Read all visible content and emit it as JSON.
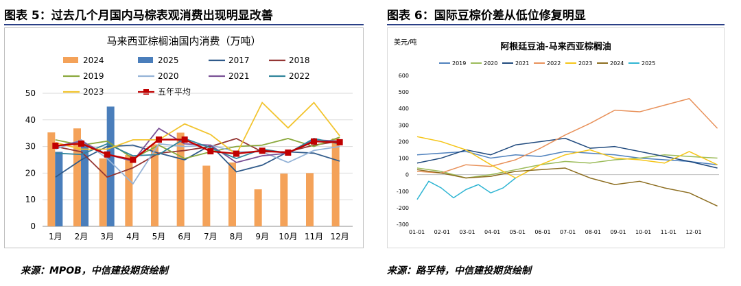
{
  "figures": [
    {
      "title": "图表 5：过去几个月国内马棕表观消费出现明显改善",
      "source": "来源：MPOB，中信建投期货绘制"
    },
    {
      "title": "图表 6：国际豆棕价差从低位修复明显",
      "source": "来源：路孚特，中信建投期货绘制"
    }
  ],
  "chart_data": [
    {
      "type": "bar",
      "title": "马来西亚棕榈油国内消费（万吨）",
      "categories": [
        "1月",
        "2月",
        "3月",
        "4月",
        "5月",
        "6月",
        "7月",
        "8月",
        "9月",
        "10月",
        "11月",
        "12月"
      ],
      "ylim": [
        0,
        50
      ],
      "yticks": [
        "0",
        "10",
        "20",
        "30",
        "40",
        "50"
      ],
      "grid": true,
      "legend": "top",
      "series": [
        {
          "name": "2024",
          "kind": "bar",
          "color": "#f4a259",
          "values": [
            35.3,
            36.8,
            25.5,
            26.8,
            30.8,
            35.2,
            22.8,
            24.0,
            13.9,
            19.8,
            20.0,
            33.0
          ]
        },
        {
          "name": "2025",
          "kind": "bar",
          "color": "#4a7ebb",
          "values": [
            28.0,
            31.0,
            45.0,
            null,
            null,
            null,
            null,
            null,
            null,
            null,
            null,
            null
          ]
        },
        {
          "name": "2017",
          "kind": "line",
          "color": "#2f5a8a",
          "values": [
            18.5,
            25.0,
            30.0,
            30.5,
            27.5,
            25.0,
            30.5,
            20.5,
            23.0,
            28.0,
            27.5,
            24.5
          ]
        },
        {
          "name": "2018",
          "kind": "line",
          "color": "#943634",
          "values": [
            30.0,
            28.0,
            18.5,
            22.0,
            27.5,
            28.5,
            30.0,
            33.0,
            28.0,
            28.0,
            30.5,
            32.0
          ]
        },
        {
          "name": "2019",
          "kind": "line",
          "color": "#8aa83c",
          "values": [
            32.5,
            30.5,
            32.0,
            25.5,
            30.5,
            25.5,
            28.0,
            30.0,
            30.5,
            33.0,
            30.0,
            33.5
          ]
        },
        {
          "name": "2020",
          "kind": "line",
          "color": "#95b3d7",
          "values": [
            29.0,
            32.5,
            25.5,
            16.0,
            31.0,
            30.0,
            30.5,
            28.0,
            28.0,
            24.0,
            28.5,
            30.0
          ]
        },
        {
          "name": "2021",
          "kind": "line",
          "color": "#7a5196",
          "values": [
            30.0,
            32.0,
            27.0,
            24.5,
            36.8,
            31.0,
            30.5,
            24.0,
            26.5,
            27.5,
            32.5,
            32.0
          ]
        },
        {
          "name": "2022",
          "kind": "line",
          "color": "#31859c",
          "values": [
            27.5,
            27.0,
            31.0,
            26.5,
            27.0,
            33.0,
            29.5,
            25.5,
            29.0,
            27.5,
            33.0,
            31.0
          ]
        },
        {
          "name": "2023",
          "kind": "line",
          "color": "#f2c42e",
          "values": [
            31.5,
            29.0,
            29.0,
            32.5,
            32.5,
            38.5,
            34.5,
            27.0,
            46.5,
            37.0,
            46.5,
            34.0
          ]
        },
        {
          "name": "五年平均",
          "kind": "avg",
          "color": "#c00000",
          "values": [
            30.3,
            31.1,
            27.0,
            25.0,
            32.6,
            32.6,
            28.2,
            27.3,
            28.4,
            27.7,
            31.9,
            31.6
          ]
        }
      ]
    },
    {
      "type": "line",
      "title": "阿根廷豆油-马来西亚棕榈油",
      "ylabel": "美元/吨",
      "x_ticks": [
        "01-01",
        "02-01",
        "03-01",
        "04-01",
        "05-01",
        "06-01",
        "07-01",
        "08-01",
        "09-01",
        "10-01",
        "11-01",
        "12-01"
      ],
      "ylim": [
        -300,
        600
      ],
      "yticks": [
        "-300",
        "-200",
        "-100",
        "0",
        "100",
        "200",
        "300",
        "400",
        "500",
        "600"
      ],
      "grid": false,
      "legend": "top",
      "series": [
        {
          "name": "2019",
          "color": "#4f81bd",
          "x": [
            1,
            30,
            60,
            90,
            120,
            150,
            180,
            210,
            240,
            270,
            300,
            330,
            364
          ],
          "y": [
            120,
            130,
            140,
            100,
            120,
            110,
            140,
            130,
            120,
            100,
            90,
            80,
            60
          ]
        },
        {
          "name": "2020",
          "color": "#9bbb59",
          "x": [
            1,
            30,
            60,
            90,
            120,
            150,
            180,
            210,
            240,
            270,
            300,
            330,
            364
          ],
          "y": [
            40,
            20,
            -20,
            0,
            30,
            60,
            80,
            70,
            90,
            100,
            120,
            110,
            100
          ]
        },
        {
          "name": "2021",
          "color": "#1f497d",
          "x": [
            1,
            30,
            60,
            90,
            120,
            150,
            180,
            210,
            240,
            270,
            300,
            330,
            364
          ],
          "y": [
            70,
            100,
            150,
            120,
            180,
            200,
            220,
            160,
            170,
            140,
            110,
            80,
            40
          ]
        },
        {
          "name": "2022",
          "color": "#e8915a",
          "x": [
            1,
            30,
            60,
            90,
            120,
            150,
            180,
            210,
            240,
            270,
            300,
            330,
            364
          ],
          "y": [
            20,
            10,
            60,
            50,
            90,
            160,
            240,
            310,
            390,
            380,
            420,
            460,
            280
          ]
        },
        {
          "name": "2023",
          "color": "#f5c518",
          "x": [
            1,
            30,
            60,
            90,
            120,
            150,
            180,
            210,
            240,
            270,
            300,
            330,
            364
          ],
          "y": [
            230,
            200,
            150,
            60,
            -20,
            60,
            120,
            150,
            100,
            90,
            70,
            140,
            60
          ]
        },
        {
          "name": "2024",
          "color": "#8c6d1f",
          "x": [
            1,
            30,
            60,
            90,
            120,
            150,
            180,
            210,
            240,
            270,
            300,
            330,
            364
          ],
          "y": [
            30,
            10,
            -20,
            -10,
            20,
            30,
            40,
            -20,
            -60,
            -40,
            -80,
            -110,
            -190
          ]
        },
        {
          "name": "2025",
          "color": "#2fb5d3",
          "x": [
            1,
            15,
            30,
            45,
            60,
            75,
            90,
            105,
            120
          ],
          "y": [
            -150,
            -40,
            -80,
            -140,
            -90,
            -60,
            -110,
            -80,
            -20
          ]
        }
      ]
    }
  ]
}
